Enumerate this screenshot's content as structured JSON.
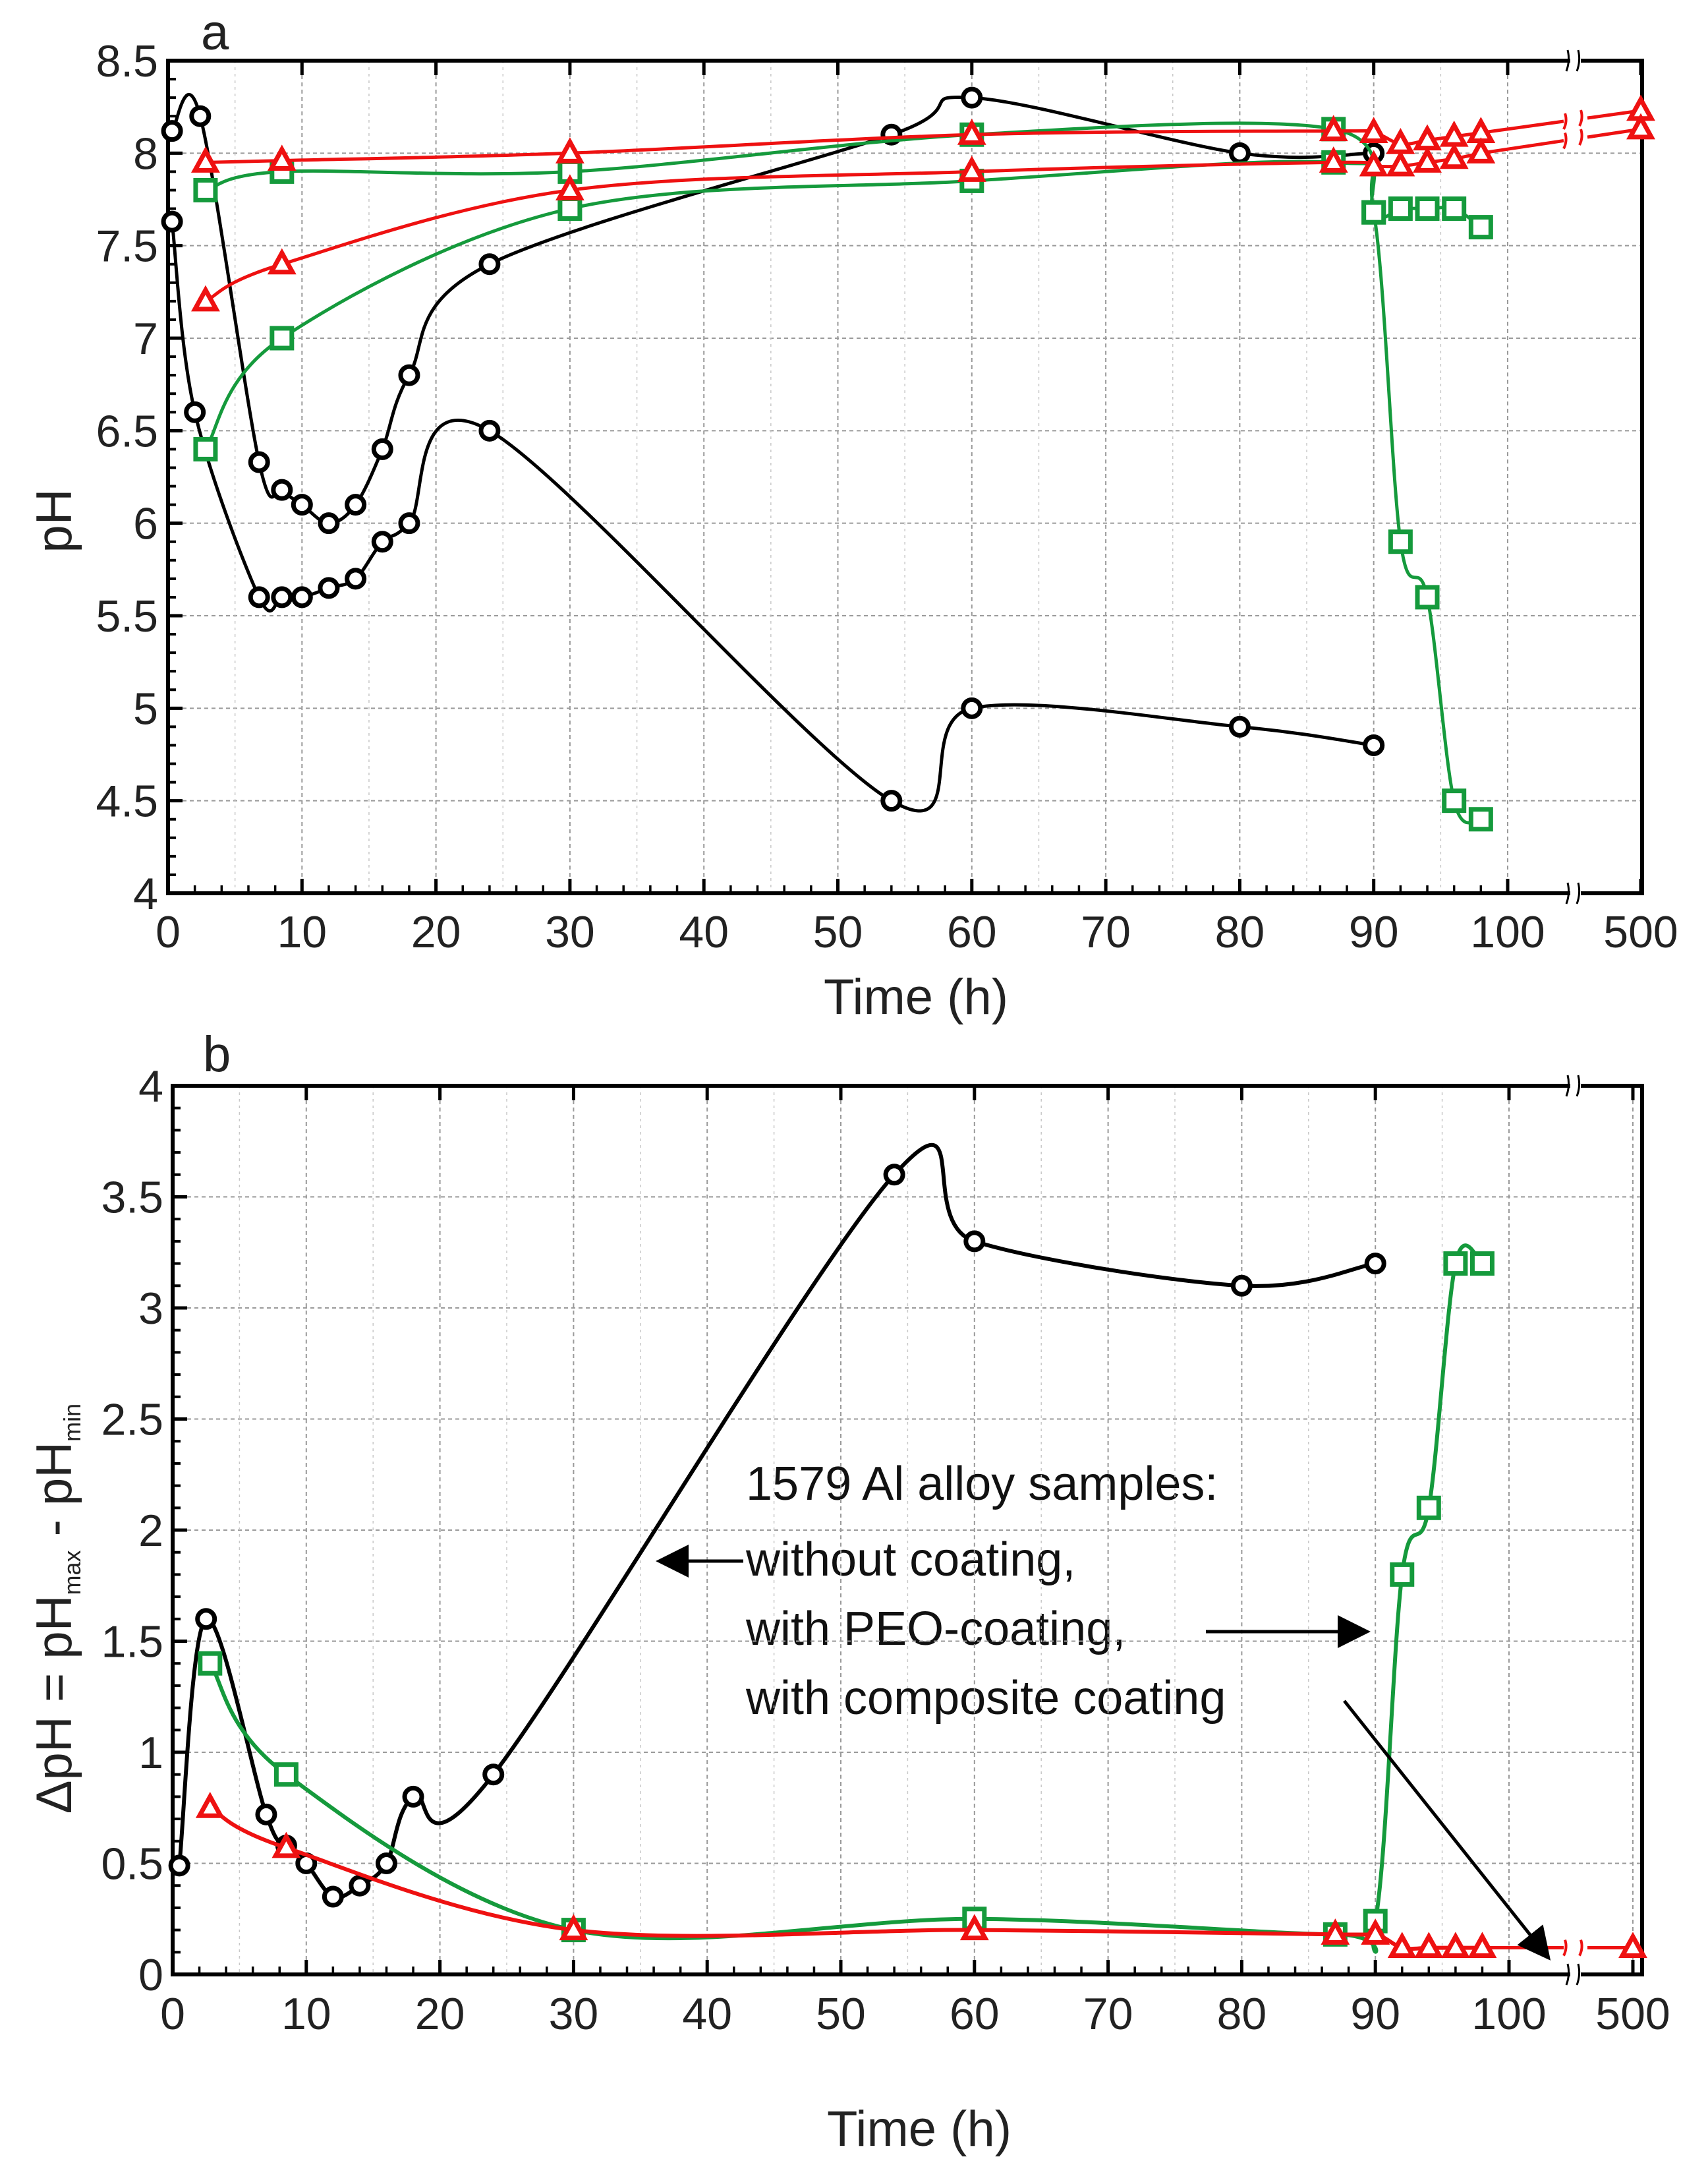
{
  "colors": {
    "black": "#000000",
    "red": "#ee1111",
    "green": "#159a3c",
    "grid": "#9a9a9a",
    "frame": "#000000"
  },
  "chart_data": [
    {
      "panel": "a",
      "type": "line",
      "panel_label": "a",
      "xlabel": "Time (h)",
      "ylabel": "pH",
      "xlim": [
        0,
        100
      ],
      "ylim": [
        4,
        8.5
      ],
      "xticks": [
        "0",
        "10",
        "20",
        "30",
        "40",
        "50",
        "60",
        "70",
        "80",
        "90",
        "100",
        "500"
      ],
      "yticks": [
        "4",
        "4.5",
        "5",
        "5.5",
        "6",
        "6.5",
        "7",
        "7.5",
        "8",
        "8.5"
      ],
      "x_break": "between 100 and 500",
      "grid": true,
      "series": [
        {
          "name": "without coating, pH max",
          "color": "black",
          "marker": "circle",
          "x": [
            0.3,
            2.4,
            6.8,
            8.5,
            10,
            12,
            14,
            16,
            18,
            24,
            54,
            60,
            80,
            90
          ],
          "y": [
            8.12,
            8.2,
            6.33,
            6.18,
            6.1,
            6.0,
            6.1,
            6.4,
            6.8,
            7.4,
            8.1,
            8.3,
            8.0,
            8.0
          ]
        },
        {
          "name": "without coating, pH min",
          "color": "black",
          "marker": "circle",
          "x": [
            0.3,
            2,
            6.8,
            8.5,
            10,
            12,
            14,
            16,
            18,
            24,
            54,
            60,
            80,
            90
          ],
          "y": [
            7.63,
            6.6,
            5.6,
            5.6,
            5.6,
            5.65,
            5.7,
            5.9,
            6.0,
            6.5,
            4.5,
            5.0,
            4.9,
            4.8
          ]
        },
        {
          "name": "with PEO-coating, pH max",
          "color": "green",
          "marker": "square",
          "x": [
            2.8,
            8.5,
            30,
            60,
            87,
            90,
            92,
            94,
            96,
            98
          ],
          "y": [
            7.8,
            7.9,
            7.9,
            8.1,
            8.13,
            7.68,
            7.7,
            7.7,
            7.7,
            7.6
          ]
        },
        {
          "name": "with PEO-coating, pH min",
          "color": "green",
          "marker": "square",
          "x": [
            2.8,
            8.5,
            30,
            60,
            87,
            90,
            92,
            94,
            96,
            98
          ],
          "y": [
            6.4,
            7.0,
            7.7,
            7.85,
            7.95,
            7.68,
            5.9,
            5.6,
            4.5,
            4.4
          ]
        },
        {
          "name": "with composite coating, pH max",
          "color": "red",
          "marker": "triangle",
          "x": [
            2.8,
            8.5,
            30,
            60,
            87,
            90,
            92,
            94,
            96,
            98
          ],
          "y": [
            7.95,
            7.96,
            8.0,
            8.1,
            8.12,
            8.11,
            8.05,
            8.07,
            8.09,
            8.11
          ],
          "break_x": [
            500
          ],
          "break_y": [
            8.23
          ]
        },
        {
          "name": "with composite coating, pH min",
          "color": "red",
          "marker": "triangle",
          "x": [
            2.8,
            8.5,
            30,
            60,
            87,
            90,
            92,
            94,
            96,
            98
          ],
          "y": [
            7.2,
            7.4,
            7.8,
            7.9,
            7.95,
            7.93,
            7.93,
            7.95,
            7.97,
            8.0
          ],
          "break_x": [
            500
          ],
          "break_y": [
            8.13
          ]
        }
      ]
    },
    {
      "panel": "b",
      "type": "line",
      "panel_label": "b",
      "xlabel": "Time (h)",
      "ylabel_parts": [
        "ΔpH = pH",
        "max",
        " - pH",
        "min"
      ],
      "xlim": [
        0,
        100
      ],
      "ylim": [
        0,
        4
      ],
      "xticks": [
        "0",
        "10",
        "20",
        "30",
        "40",
        "50",
        "60",
        "70",
        "80",
        "90",
        "100",
        "500"
      ],
      "yticks": [
        "0",
        "0.5",
        "1",
        "1.5",
        "2",
        "2.5",
        "3",
        "3.5",
        "4"
      ],
      "x_break": "between 100 and 500",
      "grid": true,
      "annotation_lines": [
        "1579 Al alloy samples:",
        "without coating,",
        "with PEO-coating,",
        "with composite coating"
      ],
      "series": [
        {
          "name": "without coating",
          "color": "black",
          "marker": "circle",
          "x": [
            0.5,
            2.5,
            7,
            8.5,
            10,
            12,
            14,
            16,
            18,
            24,
            54,
            60,
            80,
            90
          ],
          "y": [
            0.49,
            1.6,
            0.72,
            0.58,
            0.5,
            0.35,
            0.4,
            0.5,
            0.8,
            0.9,
            3.6,
            3.3,
            3.1,
            3.2
          ]
        },
        {
          "name": "with PEO-coating",
          "color": "green",
          "marker": "square",
          "x": [
            2.8,
            8.5,
            30,
            60,
            87,
            90,
            92,
            94,
            96,
            98
          ],
          "y": [
            1.4,
            0.9,
            0.2,
            0.25,
            0.18,
            0.24,
            1.8,
            2.1,
            3.2,
            3.2
          ]
        },
        {
          "name": "with composite coating",
          "color": "red",
          "marker": "triangle",
          "x": [
            2.8,
            8.5,
            30,
            60,
            87,
            90,
            92,
            94,
            96,
            98
          ],
          "y": [
            0.75,
            0.57,
            0.2,
            0.2,
            0.18,
            0.18,
            0.12,
            0.12,
            0.12,
            0.12
          ],
          "break_x": [
            500
          ],
          "break_y": [
            0.12
          ]
        }
      ]
    }
  ]
}
